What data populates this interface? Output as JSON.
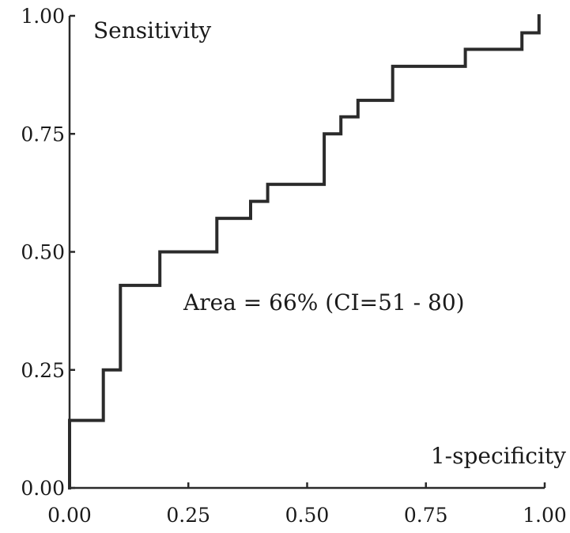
{
  "chart_data": {
    "type": "line",
    "step": true,
    "xlabel": "1-specificity",
    "ylabel": "Sensitivity",
    "xlim": [
      0,
      1
    ],
    "ylim": [
      0,
      1
    ],
    "x_ticks": [
      "0.00",
      "0.25",
      "0.50",
      "0.75",
      "1.00"
    ],
    "y_ticks": [
      "0.00",
      "0.25",
      "0.50",
      "0.75",
      "1.00"
    ],
    "annotation": "Area = 66% (CI=51 - 80)",
    "grid": false,
    "line_color": "#2b2b2b",
    "series": [
      {
        "x": [
          0.0,
          0.0,
          0.071,
          0.071,
          0.107,
          0.107,
          0.19,
          0.19,
          0.31,
          0.31,
          0.381,
          0.381,
          0.417,
          0.417,
          0.536,
          0.536,
          0.571,
          0.571,
          0.607,
          0.607,
          0.68,
          0.68,
          0.833,
          0.833,
          0.952,
          0.952,
          0.988,
          0.988
        ],
        "y": [
          0.0,
          0.143,
          0.143,
          0.25,
          0.25,
          0.429,
          0.429,
          0.5,
          0.5,
          0.571,
          0.571,
          0.607,
          0.607,
          0.643,
          0.643,
          0.75,
          0.75,
          0.786,
          0.786,
          0.821,
          0.821,
          0.893,
          0.893,
          0.929,
          0.929,
          0.964,
          0.964,
          1.0
        ]
      }
    ]
  }
}
